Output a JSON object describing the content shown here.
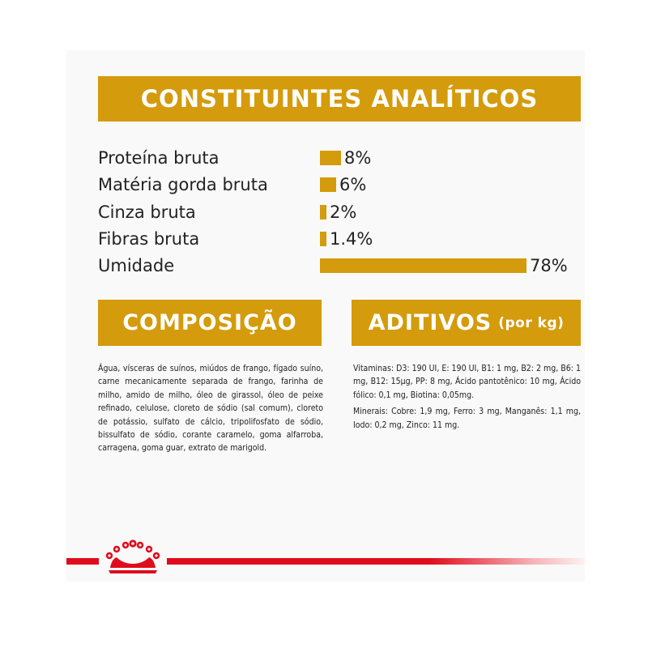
{
  "analitics": {
    "title": "CONSTITUINTES ANALÍTICOS",
    "rows": [
      {
        "label": "Proteína bruta",
        "value": "8%",
        "fraction": 0.103
      },
      {
        "label": "Matéria gorda bruta",
        "value": "6%",
        "fraction": 0.077
      },
      {
        "label": "Cinza bruta",
        "value": "2%",
        "fraction": 0.026
      },
      {
        "label": "Fibras bruta",
        "value": "1.4%",
        "fraction": 0.018
      },
      {
        "label": "Umidade",
        "value": "78%",
        "fraction": 1.0
      }
    ]
  },
  "composicao": {
    "title": "COMPOSIÇÃO",
    "text": "Água, vísceras de suínos, miúdos de frango, fígado suíno, carne mecanicamente separada de frango, farinha de milho, amido de milho, óleo de girassol, óleo de peixe refinado, celulose, cloreto de sódio (sal comum), cloreto de potássio, sulfato de cálcio, tripolifosfato de sódio, bissulfato de sódio, corante caramelo, goma alfarroba, carragena, goma guar, extrato de marigold."
  },
  "aditivos": {
    "title": "ADITIVOS",
    "suffix": "(por kg)",
    "vitaminas": "Vitaminas: D3: 190 UI, E: 190 UI, B1: 1 mg, B2: 2 mg, B6: 1 mg, B12: 15μg, PP: 8 mg, Ácido pantotênico: 10 mg, Ácido fólico: 0,1 mg, Biotina: 0,05mg.",
    "minerais": "Minerais: Cobre: 1,9 mg, Ferro: 3 mg, Manganês: 1,1 mg, Iodo: 0,2 mg, Zinco: 11 mg."
  },
  "colors": {
    "accent": "#d49b0c",
    "brand_red": "#e00b1c"
  },
  "icons": {
    "crown": "royal-crown-icon"
  }
}
